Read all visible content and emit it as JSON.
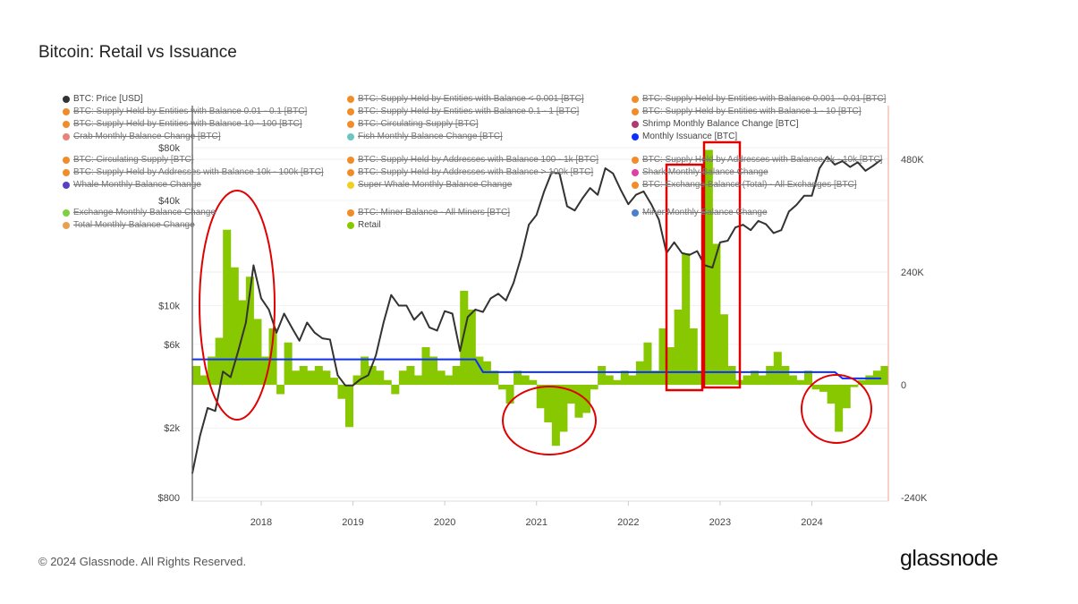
{
  "page": {
    "title": "Bitcoin: Retail vs Issuance",
    "footer": "© 2024 Glassnode. All Rights Reserved.",
    "logo": "glassnode"
  },
  "chart_data": {
    "type": "line",
    "title": "Bitcoin: Retail vs Issuance",
    "x_ticks": [
      "2018",
      "2019",
      "2020",
      "2021",
      "2022",
      "2023",
      "2024"
    ],
    "x_range": [
      "2017-04",
      "2024-10"
    ],
    "y_left": {
      "scale": "log",
      "ticks": [
        "$800",
        "$2k",
        "$6k",
        "$10k",
        "$40k",
        "$80k"
      ],
      "tick_values": [
        800,
        2000,
        6000,
        10000,
        40000,
        80000
      ],
      "range": [
        800,
        80000
      ]
    },
    "y_right": {
      "scale": "linear",
      "ticks": [
        "-240K",
        "0",
        "240K",
        "480K"
      ],
      "tick_values": [
        -240000,
        0,
        240000,
        480000
      ],
      "range": [
        -240000,
        480000
      ]
    },
    "grid": true,
    "legend_placement": "top",
    "legend": [
      {
        "label": "BTC: Price [USD]",
        "color": "#333333",
        "active": true
      },
      {
        "label": "BTC: Supply Held by Entities with Balance < 0.001 [BTC]",
        "color": "#f28c28",
        "active": false
      },
      {
        "label": "BTC: Supply Held by Entities with Balance 0.001 - 0.01 [BTC]",
        "color": "#f28c28",
        "active": false
      },
      {
        "label": "BTC: Supply Held by Entities with Balance 0.01 - 0.1 [BTC]",
        "color": "#f28c28",
        "active": false
      },
      {
        "label": "BTC: Supply Held by Entities with Balance 0.1 - 1 [BTC]",
        "color": "#f28c28",
        "active": false
      },
      {
        "label": "BTC: Supply Held by Entities with Balance 1 - 10 [BTC]",
        "color": "#f28c28",
        "active": false
      },
      {
        "label": "BTC: Supply Held by Entities with Balance 10 - 100 [BTC]",
        "color": "#f28c28",
        "active": false
      },
      {
        "label": "BTC: Circulating Supply [BTC]",
        "color": "#f28c28",
        "active": false
      },
      {
        "label": "Shrimp Monthly Balance Change [BTC]",
        "color": "#b03a6a",
        "active": true
      },
      {
        "label": "Crab Monthly Balance Change [BTC]",
        "color": "#e8837a",
        "active": false
      },
      {
        "label": "Fish Monthly Balance Change [BTC]",
        "color": "#6cc5c0",
        "active": false
      },
      {
        "label": "Monthly Issuance [BTC]",
        "color": "#0a2fff",
        "active": true
      },
      {
        "label": "BTC: Circulating Supply [BTC]",
        "color": "#f28c28",
        "active": false
      },
      {
        "label": "BTC: Supply Held by Addresses with Balance 100 - 1k [BTC]",
        "color": "#f28c28",
        "active": false
      },
      {
        "label": "BTC: Supply Held by Addresses with Balance 1k - 10k [BTC]",
        "color": "#f28c28",
        "active": false
      },
      {
        "label": "BTC: Supply Held by Addresses with Balance 10k - 100k [BTC]",
        "color": "#f28c28",
        "active": false
      },
      {
        "label": "BTC: Supply Held by Addresses with Balance > 100k [BTC]",
        "color": "#f28c28",
        "active": false
      },
      {
        "label": "Shark Monthly Balance Change",
        "color": "#e040a0",
        "active": false
      },
      {
        "label": "Whale Monthly Balance Change",
        "color": "#5a3fc0",
        "active": false
      },
      {
        "label": "Super Whale Monthly Balance Change",
        "color": "#f0d020",
        "active": false
      },
      {
        "label": "BTC: Exchange Balance (Total) - All Exchanges [BTC]",
        "color": "#f28c28",
        "active": false
      },
      {
        "label": "Exchange Monthly Balance Change",
        "color": "#7ed040",
        "active": false
      },
      {
        "label": "BTC: Miner Balance - All Miners [BTC]",
        "color": "#f28c28",
        "active": false
      },
      {
        "label": "Miner Monthly Balance Change",
        "color": "#4a7fd0",
        "active": false
      },
      {
        "label": "Total Monthly Balance Change",
        "color": "#e8a050",
        "active": false
      },
      {
        "label": "Retail",
        "color": "#88c800",
        "active": true
      }
    ],
    "series": [
      {
        "name": "BTC: Price [USD]",
        "axis": "left",
        "color": "#333333",
        "type": "line",
        "x": [
          "2017-04",
          "2017-05",
          "2017-06",
          "2017-07",
          "2017-08",
          "2017-09",
          "2017-10",
          "2017-11",
          "2017-12",
          "2018-01",
          "2018-02",
          "2018-03",
          "2018-04",
          "2018-05",
          "2018-06",
          "2018-07",
          "2018-08",
          "2018-09",
          "2018-10",
          "2018-11",
          "2018-12",
          "2019-01",
          "2019-02",
          "2019-03",
          "2019-04",
          "2019-05",
          "2019-06",
          "2019-07",
          "2019-08",
          "2019-09",
          "2019-10",
          "2019-11",
          "2019-12",
          "2020-01",
          "2020-02",
          "2020-03",
          "2020-04",
          "2020-05",
          "2020-06",
          "2020-07",
          "2020-08",
          "2020-09",
          "2020-10",
          "2020-11",
          "2020-12",
          "2021-01",
          "2021-02",
          "2021-03",
          "2021-04",
          "2021-05",
          "2021-06",
          "2021-07",
          "2021-08",
          "2021-09",
          "2021-10",
          "2021-11",
          "2021-12",
          "2022-01",
          "2022-02",
          "2022-03",
          "2022-04",
          "2022-05",
          "2022-06",
          "2022-07",
          "2022-08",
          "2022-09",
          "2022-10",
          "2022-11",
          "2022-12",
          "2023-01",
          "2023-02",
          "2023-03",
          "2023-04",
          "2023-05",
          "2023-06",
          "2023-07",
          "2023-08",
          "2023-09",
          "2023-10",
          "2023-11",
          "2023-12",
          "2024-01",
          "2024-02",
          "2024-03",
          "2024-04",
          "2024-05",
          "2024-06",
          "2024-07",
          "2024-08",
          "2024-09",
          "2024-10"
        ],
        "values": [
          1100,
          1800,
          2600,
          2500,
          4200,
          3900,
          5500,
          8000,
          17000,
          11000,
          9500,
          7000,
          9000,
          7500,
          6300,
          8000,
          7000,
          6500,
          6400,
          4000,
          3500,
          3500,
          3800,
          4000,
          5200,
          8000,
          11500,
          10000,
          10000,
          8300,
          9200,
          7500,
          7200,
          9300,
          9000,
          5500,
          8600,
          9500,
          9200,
          11000,
          11700,
          10700,
          13500,
          19000,
          29000,
          33000,
          45000,
          58000,
          57000,
          37000,
          35000,
          41000,
          47000,
          43000,
          61000,
          57000,
          46000,
          38000,
          43000,
          45000,
          38000,
          31000,
          20000,
          23000,
          20000,
          19500,
          20500,
          17000,
          16500,
          23000,
          23500,
          28000,
          29000,
          27000,
          30500,
          29200,
          26000,
          27000,
          34500,
          37700,
          42500,
          42500,
          61000,
          71000,
          64000,
          67000,
          62000,
          66000,
          59000,
          63000,
          68000
        ]
      },
      {
        "name": "Retail",
        "axis": "right",
        "color": "#88c800",
        "type": "area",
        "x": [
          "2017-04",
          "2017-05",
          "2017-06",
          "2017-07",
          "2017-08",
          "2017-09",
          "2017-10",
          "2017-11",
          "2017-12",
          "2018-01",
          "2018-02",
          "2018-03",
          "2018-04",
          "2018-05",
          "2018-06",
          "2018-07",
          "2018-08",
          "2018-09",
          "2018-10",
          "2018-11",
          "2018-12",
          "2019-01",
          "2019-02",
          "2019-03",
          "2019-04",
          "2019-05",
          "2019-06",
          "2019-07",
          "2019-08",
          "2019-09",
          "2019-10",
          "2019-11",
          "2019-12",
          "2020-01",
          "2020-02",
          "2020-03",
          "2020-04",
          "2020-05",
          "2020-06",
          "2020-07",
          "2020-08",
          "2020-09",
          "2020-10",
          "2020-11",
          "2020-12",
          "2021-01",
          "2021-02",
          "2021-03",
          "2021-04",
          "2021-05",
          "2021-06",
          "2021-07",
          "2021-08",
          "2021-09",
          "2021-10",
          "2021-11",
          "2021-12",
          "2022-01",
          "2022-02",
          "2022-03",
          "2022-04",
          "2022-05",
          "2022-06",
          "2022-07",
          "2022-08",
          "2022-09",
          "2022-10",
          "2022-11",
          "2022-12",
          "2023-01",
          "2023-02",
          "2023-03",
          "2023-04",
          "2023-05",
          "2023-06",
          "2023-07",
          "2023-08",
          "2023-09",
          "2023-10",
          "2023-11",
          "2023-12",
          "2024-01",
          "2024-02",
          "2024-03",
          "2024-04",
          "2024-05",
          "2024-06",
          "2024-07",
          "2024-08",
          "2024-09",
          "2024-10"
        ],
        "values": [
          40000,
          20000,
          60000,
          100000,
          330000,
          250000,
          180000,
          230000,
          140000,
          60000,
          120000,
          -20000,
          90000,
          30000,
          40000,
          30000,
          40000,
          30000,
          15000,
          -30000,
          -90000,
          20000,
          60000,
          40000,
          30000,
          10000,
          -20000,
          30000,
          40000,
          20000,
          80000,
          60000,
          30000,
          20000,
          40000,
          200000,
          160000,
          60000,
          50000,
          30000,
          -10000,
          -40000,
          30000,
          20000,
          10000,
          -50000,
          -80000,
          -130000,
          -100000,
          -40000,
          -70000,
          -60000,
          -10000,
          40000,
          20000,
          10000,
          30000,
          20000,
          50000,
          90000,
          30000,
          120000,
          80000,
          160000,
          280000,
          120000,
          30000,
          500000,
          300000,
          150000,
          40000,
          10000,
          20000,
          30000,
          20000,
          40000,
          70000,
          40000,
          20000,
          10000,
          30000,
          -10000,
          -15000,
          -40000,
          -100000,
          -50000,
          -5000,
          10000,
          20000,
          30000,
          40000
        ]
      },
      {
        "name": "Monthly Issuance [BTC]",
        "axis": "right",
        "color": "#0a2fff",
        "type": "line",
        "x": [
          "2017-04",
          "2020-05",
          "2020-06",
          "2024-04",
          "2024-05",
          "2024-10"
        ],
        "values": [
          54000,
          54000,
          27000,
          27000,
          13500,
          13500
        ]
      }
    ],
    "annotations": [
      {
        "shape": "ellipse",
        "color": "#e00000",
        "around": "2017-08 to 2018-03"
      },
      {
        "shape": "ellipse",
        "color": "#e00000",
        "around": "2020-10 to 2021-07"
      },
      {
        "shape": "rectangle",
        "color": "#e00000",
        "around": "2022-05 to 2022-10"
      },
      {
        "shape": "rectangle",
        "color": "#e00000",
        "around": "2022-10 to 2023-03"
      },
      {
        "shape": "ellipse",
        "color": "#e00000",
        "around": "2023-12 to 2024-07"
      }
    ]
  }
}
